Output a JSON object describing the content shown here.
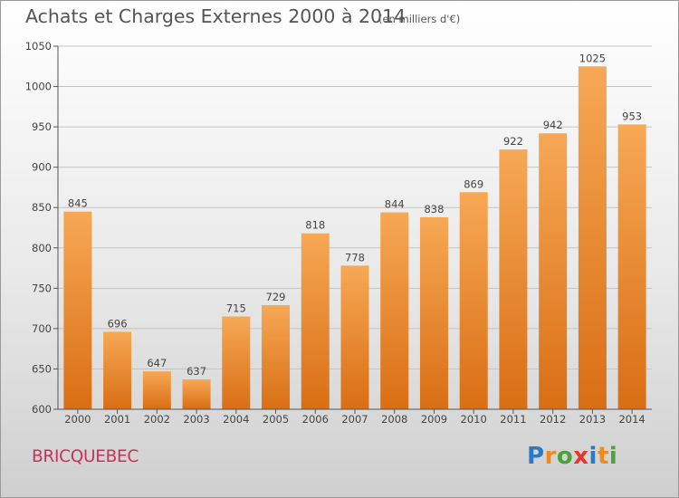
{
  "header": {
    "title": "Achats et Charges Externes 2000 à 2014",
    "subtitle": "(en milliers d'€)"
  },
  "footer": {
    "place": "BRICQUEBEC",
    "logo": {
      "letters": [
        "P",
        "r",
        "o",
        "x",
        "i",
        "t",
        "i"
      ],
      "colors": [
        "#2b7bc4",
        "#f08a1c",
        "#4aa33a",
        "#e8352a",
        "#2b7bc4",
        "#f08a1c",
        "#4aa33a"
      ]
    }
  },
  "chart_data": {
    "type": "bar",
    "categories": [
      "2000",
      "2001",
      "2002",
      "2003",
      "2004",
      "2005",
      "2006",
      "2007",
      "2008",
      "2009",
      "2010",
      "2011",
      "2012",
      "2013",
      "2014"
    ],
    "values": [
      845,
      696,
      647,
      637,
      715,
      729,
      818,
      778,
      844,
      838,
      869,
      922,
      942,
      1025,
      953
    ],
    "title": "Achats et Charges Externes 2000 à 2014",
    "ylim": [
      600,
      1050
    ],
    "yticks": [
      600,
      650,
      700,
      750,
      800,
      850,
      900,
      950,
      1000,
      1050
    ],
    "grid": true,
    "bar_color_top": "#f7a855",
    "bar_color_bottom": "#d96e14"
  }
}
